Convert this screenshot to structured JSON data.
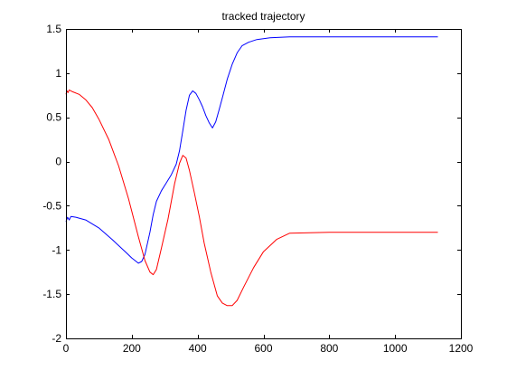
{
  "chart_data": {
    "type": "line",
    "title": "tracked trajectory",
    "xlabel": "",
    "ylabel": "",
    "xlim": [
      0,
      1200
    ],
    "ylim": [
      -2,
      1.5
    ],
    "xticks": [
      0,
      200,
      400,
      600,
      800,
      1000,
      1200
    ],
    "yticks": [
      -2,
      -1.5,
      -1,
      -0.5,
      0,
      0.5,
      1,
      1.5
    ],
    "xtick_labels": [
      "0",
      "200",
      "400",
      "600",
      "800",
      "1000",
      "1200"
    ],
    "ytick_labels": [
      "-2",
      "-1.5",
      "-1",
      "-0.5",
      "0",
      "0.5",
      "1",
      "1.5"
    ],
    "grid": false,
    "series": [
      {
        "color": "#0000ff",
        "x": [
          0,
          5,
          10,
          15,
          30,
          60,
          100,
          140,
          180,
          200,
          220,
          230,
          240,
          255,
          265,
          275,
          290,
          305,
          320,
          335,
          345,
          355,
          365,
          375,
          385,
          395,
          405,
          415,
          425,
          435,
          445,
          455,
          465,
          475,
          490,
          505,
          520,
          535,
          555,
          580,
          620,
          680,
          800,
          900,
          1000,
          1130
        ],
        "y": [
          -0.68,
          -0.63,
          -0.66,
          -0.62,
          -0.63,
          -0.66,
          -0.75,
          -0.88,
          -1.02,
          -1.09,
          -1.15,
          -1.13,
          -1.05,
          -0.8,
          -0.6,
          -0.45,
          -0.33,
          -0.24,
          -0.15,
          -0.03,
          0.12,
          0.35,
          0.58,
          0.75,
          0.8,
          0.77,
          0.7,
          0.62,
          0.52,
          0.44,
          0.38,
          0.45,
          0.58,
          0.72,
          0.93,
          1.1,
          1.23,
          1.31,
          1.35,
          1.38,
          1.4,
          1.41,
          1.41,
          1.41,
          1.41,
          1.41
        ]
      },
      {
        "color": "#ff0000",
        "x": [
          0,
          3,
          6,
          10,
          20,
          40,
          60,
          80,
          100,
          130,
          160,
          190,
          220,
          240,
          255,
          265,
          275,
          290,
          310,
          330,
          345,
          355,
          365,
          375,
          390,
          405,
          420,
          440,
          460,
          475,
          490,
          505,
          520,
          540,
          570,
          600,
          640,
          680,
          800,
          1000,
          1130
        ],
        "y": [
          0.76,
          0.8,
          0.78,
          0.81,
          0.79,
          0.76,
          0.7,
          0.61,
          0.48,
          0.25,
          -0.05,
          -0.42,
          -0.85,
          -1.12,
          -1.25,
          -1.28,
          -1.22,
          -0.98,
          -0.65,
          -0.25,
          -0.02,
          0.07,
          0.04,
          -0.1,
          -0.35,
          -0.62,
          -0.92,
          -1.25,
          -1.52,
          -1.6,
          -1.63,
          -1.63,
          -1.57,
          -1.42,
          -1.2,
          -1.02,
          -0.88,
          -0.81,
          -0.8,
          -0.8,
          -0.8
        ]
      }
    ]
  }
}
